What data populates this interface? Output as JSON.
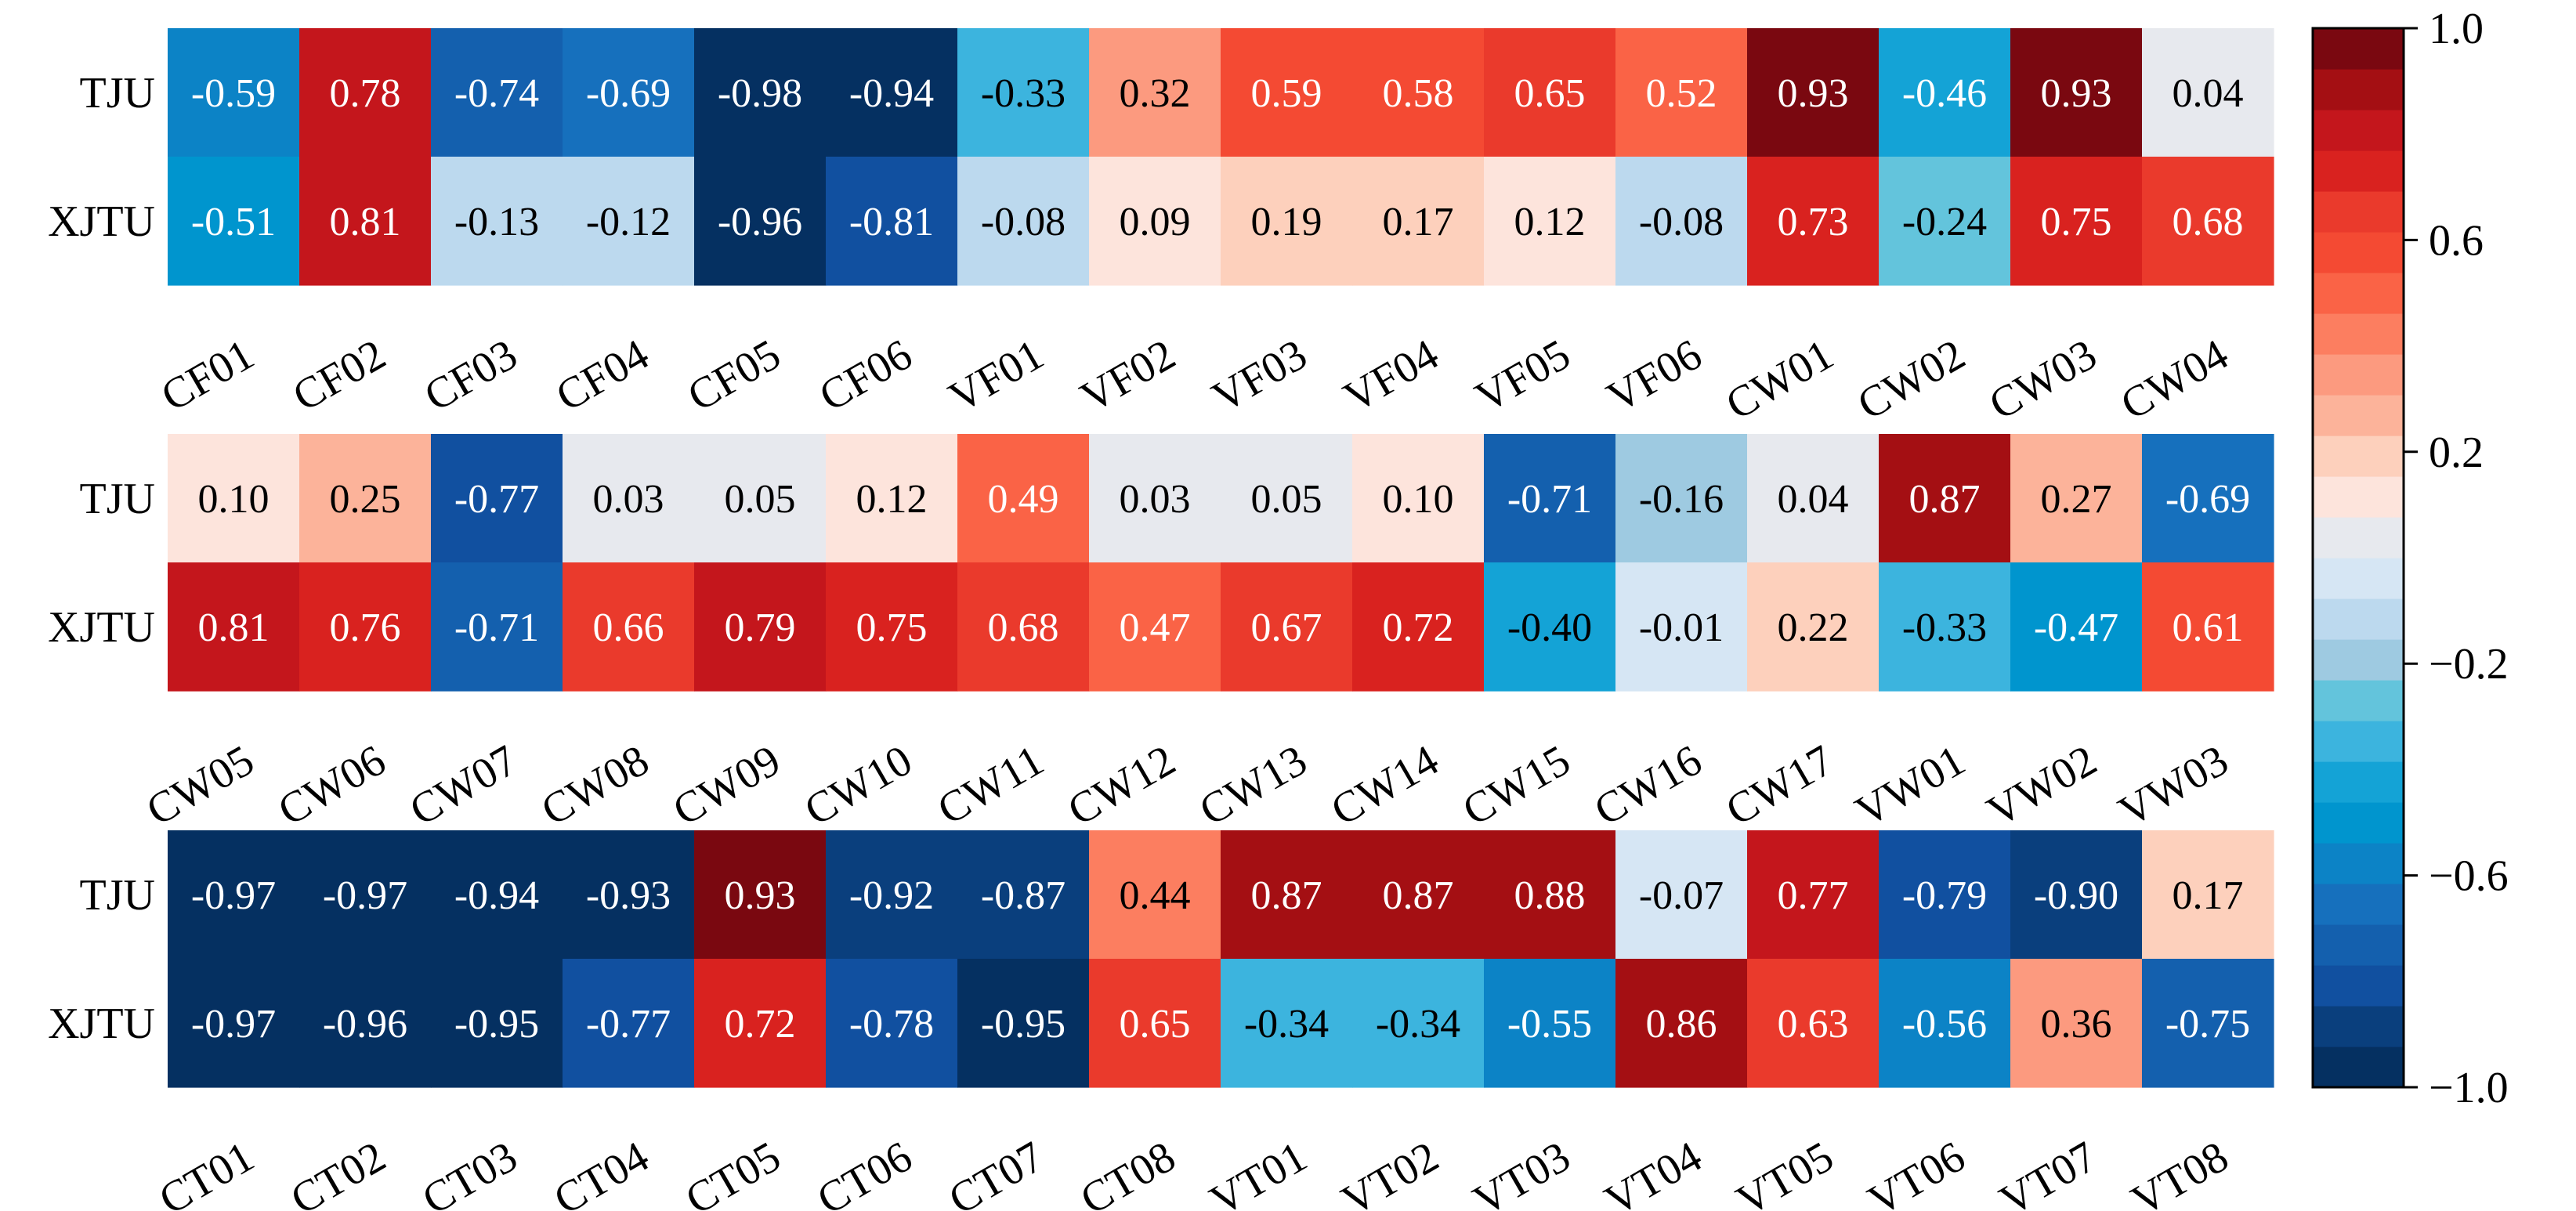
{
  "chart_data": {
    "type": "heatmap",
    "rows": [
      "TJU",
      "XJTU"
    ],
    "colorbar": {
      "range": [
        -1.0,
        1.0
      ],
      "tick_values": [
        1.0,
        0.6,
        0.2,
        -0.2,
        -0.6,
        -1.0
      ],
      "tick_labels": [
        "1.0",
        "0.6",
        "0.2",
        "−0.2",
        "−0.6",
        "−1.0"
      ]
    },
    "panels": [
      {
        "columns": [
          "CF01",
          "CF02",
          "CF03",
          "CF04",
          "CF05",
          "CF06",
          "VF01",
          "VF02",
          "VF03",
          "VF04",
          "VF05",
          "VF06",
          "CW01",
          "CW02",
          "CW03",
          "CW04"
        ],
        "values": [
          [
            -0.59,
            0.78,
            -0.74,
            -0.69,
            -0.98,
            -0.94,
            -0.33,
            0.32,
            0.59,
            0.58,
            0.65,
            0.52,
            0.93,
            -0.46,
            0.93,
            0.04
          ],
          [
            -0.51,
            0.81,
            -0.13,
            -0.12,
            -0.96,
            -0.81,
            -0.08,
            0.09,
            0.19,
            0.17,
            0.12,
            -0.08,
            0.73,
            -0.24,
            0.75,
            0.68
          ]
        ],
        "labels": [
          [
            "-0.59",
            "0.78",
            "-0.74",
            "-0.69",
            "-0.98",
            "-0.94",
            "-0.33",
            "0.32",
            "0.59",
            "0.58",
            "0.65",
            "0.52",
            "0.93",
            "-0.46",
            "0.93",
            "0.04"
          ],
          [
            "-0.51",
            "0.81",
            "-0.13",
            "-0.12",
            "-0.96",
            "-0.81",
            "-0.08",
            "0.09",
            "0.19",
            "0.17",
            "0.12",
            "-0.08",
            "0.73",
            "-0.24",
            "0.75",
            "0.68"
          ]
        ]
      },
      {
        "columns": [
          "CW05",
          "CW06",
          "CW07",
          "CW08",
          "CW09",
          "CW10",
          "CW11",
          "CW12",
          "CW13",
          "CW14",
          "CW15",
          "CW16",
          "CW17",
          "VW01",
          "VW02",
          "VW03"
        ],
        "values": [
          [
            0.1,
            0.25,
            -0.77,
            0.03,
            0.05,
            0.12,
            0.49,
            0.03,
            0.05,
            0.1,
            -0.71,
            -0.16,
            0.04,
            0.87,
            0.27,
            -0.69
          ],
          [
            0.81,
            0.76,
            -0.71,
            0.66,
            0.79,
            0.75,
            0.68,
            0.47,
            0.67,
            0.72,
            -0.4,
            -0.01,
            0.22,
            -0.33,
            -0.47,
            0.61
          ]
        ],
        "labels": [
          [
            "0.10",
            "0.25",
            "-0.77",
            "0.03",
            "0.05",
            "0.12",
            "0.49",
            "0.03",
            "0.05",
            "0.10",
            "-0.71",
            "-0.16",
            "0.04",
            "0.87",
            "0.27",
            "-0.69"
          ],
          [
            "0.81",
            "0.76",
            "-0.71",
            "0.66",
            "0.79",
            "0.75",
            "0.68",
            "0.47",
            "0.67",
            "0.72",
            "-0.40",
            "-0.01",
            "0.22",
            "-0.33",
            "-0.47",
            "0.61"
          ]
        ]
      },
      {
        "columns": [
          "CT01",
          "CT02",
          "CT03",
          "CT04",
          "CT05",
          "CT06",
          "CT07",
          "CT08",
          "VT01",
          "VT02",
          "VT03",
          "VT04",
          "VT05",
          "VT06",
          "VT07",
          "VT08"
        ],
        "values": [
          [
            -0.97,
            -0.97,
            -0.94,
            -0.93,
            0.93,
            -0.92,
            -0.87,
            0.44,
            0.87,
            0.87,
            0.88,
            -0.07,
            0.77,
            -0.79,
            -0.9,
            0.17
          ],
          [
            -0.97,
            -0.96,
            -0.95,
            -0.77,
            0.72,
            -0.78,
            -0.95,
            0.65,
            -0.34,
            -0.34,
            -0.55,
            0.86,
            0.63,
            -0.56,
            0.36,
            -0.75
          ]
        ],
        "labels": [
          [
            "-0.97",
            "-0.97",
            "-0.94",
            "-0.93",
            "0.93",
            "-0.92",
            "-0.87",
            "0.44",
            "0.87",
            "0.87",
            "0.88",
            "-0.07",
            "0.77",
            "-0.79",
            "-0.90",
            "0.17"
          ],
          [
            "-0.97",
            "-0.96",
            "-0.95",
            "-0.77",
            "0.72",
            "-0.78",
            "-0.95",
            "0.65",
            "-0.34",
            "-0.34",
            "-0.55",
            "0.86",
            "0.63",
            "-0.56",
            "0.36",
            "-0.75"
          ]
        ]
      }
    ]
  },
  "colors": {
    "scale": [
      "#053061",
      "#0a3f7d",
      "#1150a0",
      "#1460ae",
      "#1670bd",
      "#0c83c6",
      "#0095ce",
      "#14a3d6",
      "#3cb4de",
      "#63c4dc",
      "#9ecae1",
      "#bcd9ee",
      "#d6e6f4",
      "#e7e9ee",
      "#fde4dc",
      "#fdd0bc",
      "#fcb39a",
      "#fc9a7f",
      "#fc7e60",
      "#fa6346",
      "#f44a33",
      "#ea3a2c",
      "#d9221f",
      "#c4161c",
      "#a40f13",
      "#7a0810"
    ]
  }
}
